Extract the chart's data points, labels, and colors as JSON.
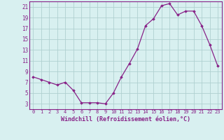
{
  "x": [
    0,
    1,
    2,
    3,
    4,
    5,
    6,
    7,
    8,
    9,
    10,
    11,
    12,
    13,
    14,
    15,
    16,
    17,
    18,
    19,
    20,
    21,
    22,
    23
  ],
  "y": [
    8,
    7.5,
    7,
    6.5,
    7,
    5.5,
    3.2,
    3.2,
    3.2,
    3.0,
    5,
    8,
    10.5,
    13.2,
    17.5,
    18.8,
    21.2,
    21.6,
    19.5,
    20.2,
    20.2,
    17.5,
    14.0,
    10.0
  ],
  "line_color": "#882288",
  "marker_color": "#882288",
  "bg_color": "#d8f0f0",
  "grid_color": "#b0d0d0",
  "xlabel": "Windchill (Refroidissement éolien,°C)",
  "xlabel_color": "#882288",
  "tick_color": "#882288",
  "ylim": [
    2,
    22
  ],
  "xlim": [
    -0.5,
    23.5
  ],
  "yticks": [
    3,
    5,
    7,
    9,
    11,
    13,
    15,
    17,
    19,
    21
  ],
  "xticks": [
    0,
    1,
    2,
    3,
    4,
    5,
    6,
    7,
    8,
    9,
    10,
    11,
    12,
    13,
    14,
    15,
    16,
    17,
    18,
    19,
    20,
    21,
    22,
    23
  ]
}
